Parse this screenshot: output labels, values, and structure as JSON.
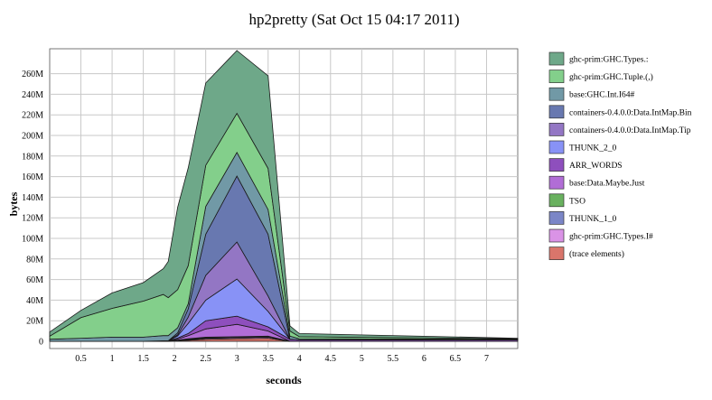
{
  "chart_data": {
    "type": "area",
    "title": "hp2pretty (Sat Oct 15 04:17 2011)",
    "xlabel": "seconds",
    "ylabel": "bytes",
    "xlim": [
      0,
      7.5
    ],
    "ylim": [
      0,
      270
    ],
    "x_ticks": [
      0.5,
      1,
      1.5,
      2,
      2.5,
      3,
      3.5,
      4,
      4.5,
      5,
      5.5,
      6,
      6.5,
      7
    ],
    "x_tick_labels": [
      "0.5",
      "1",
      "1.5",
      "2",
      "2.5",
      "3",
      "3.5",
      "4",
      "4.5",
      "5",
      "5.5",
      "6",
      "6.5",
      "7"
    ],
    "y_ticks": [
      0,
      20,
      40,
      60,
      80,
      100,
      120,
      140,
      160,
      180,
      200,
      220,
      240,
      260
    ],
    "y_tick_labels": [
      "0",
      "20M",
      "40M",
      "60M",
      "80M",
      "100M",
      "120M",
      "140M",
      "160M",
      "180M",
      "200M",
      "220M",
      "240M",
      "260M"
    ],
    "grid": true,
    "legend_position": "right",
    "stacked": true,
    "x": [
      0,
      0.5,
      1,
      1.5,
      1.82,
      1.9,
      2.05,
      2.22,
      2.5,
      3,
      3.5,
      3.85,
      4.0,
      7.5
    ],
    "series": [
      {
        "name": "(trace elements)",
        "color": "#d9756b",
        "values": [
          0,
          0,
          0,
          0,
          0,
          0,
          0.5,
          1,
          2,
          2.5,
          3,
          0,
          0,
          0
        ]
      },
      {
        "name": "ghc-prim:GHC.Types.I#",
        "color": "#da93e6",
        "values": [
          0,
          0,
          0,
          0,
          0,
          0,
          0.3,
          0.5,
          1,
          1,
          1,
          0,
          0,
          0
        ]
      },
      {
        "name": "THUNK_1_0",
        "color": "#7b86c7",
        "values": [
          0,
          0,
          0,
          0,
          0,
          0,
          0.2,
          0.5,
          0.5,
          0.5,
          0.5,
          0,
          0,
          0
        ]
      },
      {
        "name": "TSO",
        "color": "#69b15f",
        "values": [
          0,
          0,
          0,
          0,
          0,
          0,
          0.2,
          0.5,
          0.5,
          0.5,
          0.5,
          0,
          0,
          0
        ]
      },
      {
        "name": "base:Data.Maybe.Just",
        "color": "#b16dd6",
        "values": [
          0,
          0,
          0,
          0,
          0,
          0,
          1,
          3,
          8,
          12,
          5,
          0,
          0,
          0
        ]
      },
      {
        "name": "ARR_WORDS",
        "color": "#8e4fbd",
        "values": [
          0,
          0,
          0,
          0,
          0.5,
          0.5,
          1,
          2,
          8,
          8,
          4,
          2,
          1.5,
          1.5
        ]
      },
      {
        "name": "THUNK_2_0",
        "color": "#8892f6",
        "values": [
          0,
          0,
          0,
          0,
          0,
          0,
          2,
          10,
          20,
          36,
          15,
          0,
          0,
          0
        ]
      },
      {
        "name": "containers-0.4.0.0:Data.IntMap.Tip",
        "color": "#9376c4",
        "values": [
          0,
          0,
          0,
          0,
          0,
          0,
          1,
          6,
          24,
          36,
          15,
          0,
          0,
          0
        ]
      },
      {
        "name": "containers-0.4.0.0:Data.IntMap.Bin",
        "color": "#6878b0",
        "values": [
          0,
          0,
          0,
          0,
          0,
          0,
          2,
          8,
          40,
          64,
          60,
          0,
          0,
          0
        ]
      },
      {
        "name": "base:GHC.Int.I64#",
        "color": "#7199a6",
        "values": [
          2,
          3,
          4,
          4,
          5,
          5,
          5,
          5,
          27,
          23,
          24,
          3,
          1,
          0.5
        ]
      },
      {
        "name": "ghc-prim:GHC.Tuple.(,)",
        "color": "#83cf8b",
        "values": [
          3,
          20,
          28,
          35,
          40,
          37,
          37,
          37,
          40,
          38,
          40,
          5,
          2,
          0.5
        ]
      },
      {
        "name": "ghc-prim:GHC.Types.:",
        "color": "#6ea889",
        "values": [
          4,
          7,
          15,
          18,
          25,
          35,
          80,
          95,
          80,
          61,
          90,
          5,
          3,
          0.5
        ]
      }
    ],
    "legend_order": [
      "ghc-prim:GHC.Types.:",
      "ghc-prim:GHC.Tuple.(,)",
      "base:GHC.Int.I64#",
      "containers-0.4.0.0:Data.IntMap.Bin",
      "containers-0.4.0.0:Data.IntMap.Tip",
      "THUNK_2_0",
      "ARR_WORDS",
      "base:Data.Maybe.Just",
      "TSO",
      "THUNK_1_0",
      "ghc-prim:GHC.Types.I#",
      "(trace elements)"
    ]
  }
}
